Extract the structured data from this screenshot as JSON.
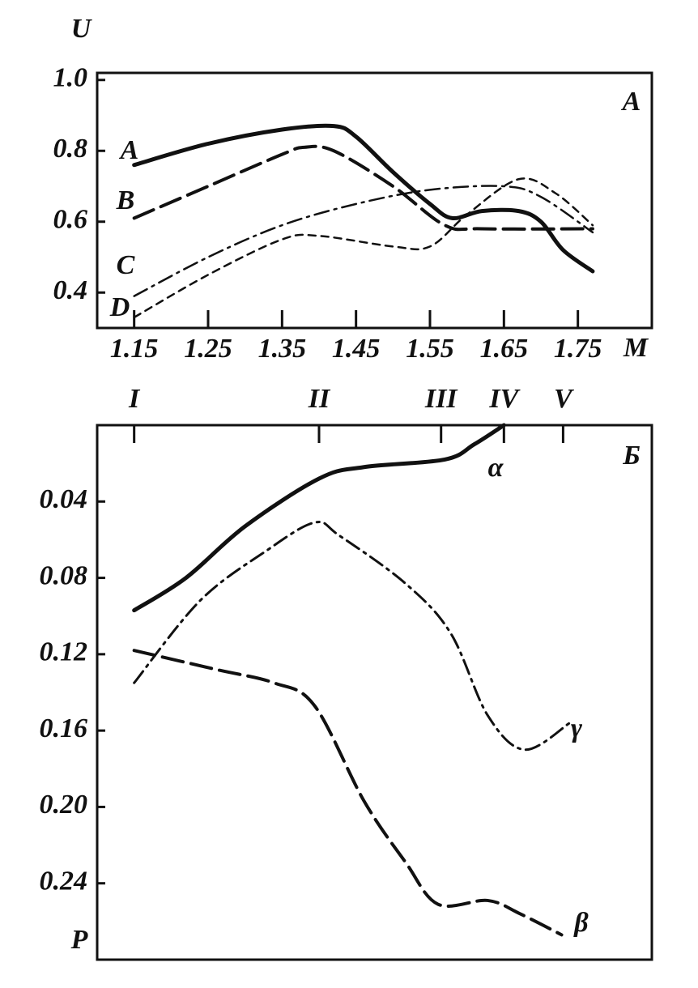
{
  "chart_data": [
    {
      "type": "line",
      "title": "A",
      "y_label": "U",
      "x_label": "M",
      "xlim": [
        1.1,
        1.85
      ],
      "xticks": [
        1.15,
        1.25,
        1.35,
        1.45,
        1.55,
        1.65,
        1.75
      ],
      "ylim": [
        0.3,
        1.02
      ],
      "yticks": [
        0.4,
        0.6,
        0.8,
        {
          "value": 1,
          "label": "1.0"
        }
      ],
      "x_tick_side": "bottom",
      "series": [
        {
          "name": "A",
          "color": "#111111",
          "dash": "solid",
          "width": 5,
          "x": [
            1.15,
            1.25,
            1.35,
            1.42,
            1.45,
            1.5,
            1.55,
            1.58,
            1.62,
            1.67,
            1.7,
            1.73,
            1.77
          ],
          "values": [
            0.76,
            0.82,
            0.86,
            0.87,
            0.84,
            0.74,
            0.65,
            0.61,
            0.63,
            0.63,
            0.6,
            0.52,
            0.46
          ]
        },
        {
          "name": "B",
          "color": "#111111",
          "dash": "long",
          "width": 4,
          "x": [
            1.15,
            1.25,
            1.35,
            1.38,
            1.42,
            1.5,
            1.57,
            1.62,
            1.77
          ],
          "values": [
            0.61,
            0.7,
            0.79,
            0.81,
            0.8,
            0.7,
            0.59,
            0.58,
            0.58
          ]
        },
        {
          "name": "C",
          "color": "#111111",
          "dash": "dashdot",
          "width": 2.5,
          "x": [
            1.15,
            1.25,
            1.35,
            1.45,
            1.55,
            1.65,
            1.7,
            1.77
          ],
          "values": [
            0.39,
            0.5,
            0.59,
            0.65,
            0.69,
            0.7,
            0.67,
            0.57
          ]
        },
        {
          "name": "D",
          "color": "#111111",
          "dash": "short",
          "width": 2.5,
          "x": [
            1.15,
            1.25,
            1.35,
            1.4,
            1.5,
            1.55,
            1.6,
            1.67,
            1.72,
            1.77
          ],
          "values": [
            0.33,
            0.45,
            0.55,
            0.56,
            0.53,
            0.53,
            0.62,
            0.72,
            0.68,
            0.59
          ]
        }
      ]
    },
    {
      "type": "line",
      "title": "Б",
      "y_label": "P",
      "xlim": [
        1.1,
        1.85
      ],
      "xticks": [
        {
          "value": 1.15,
          "label": "I"
        },
        {
          "value": 1.4,
          "label": "II"
        },
        {
          "value": 1.565,
          "label": "III"
        },
        {
          "value": 1.65,
          "label": "IV"
        },
        {
          "value": 1.73,
          "label": "V"
        }
      ],
      "ylim": [
        0,
        0.28
      ],
      "y_inverted": true,
      "yticks": [
        0.04,
        0.08,
        0.12,
        0.16,
        {
          "value": 0.2,
          "label": "0.20"
        },
        0.24
      ],
      "x_tick_side": "top",
      "series": [
        {
          "name": "α",
          "color": "#111111",
          "dash": "solid",
          "width": 5,
          "x": [
            1.15,
            1.22,
            1.3,
            1.4,
            1.46,
            1.57,
            1.61,
            1.65
          ],
          "values": [
            0.097,
            0.08,
            0.053,
            0.028,
            0.022,
            0.018,
            0.01,
            0.0
          ]
        },
        {
          "name": "γ",
          "color": "#111111",
          "dash": "dashdot",
          "width": 3,
          "x": [
            1.15,
            1.239,
            1.328,
            1.394,
            1.428,
            1.517,
            1.578,
            1.628,
            1.678,
            1.739
          ],
          "values": [
            0.135,
            0.092,
            0.066,
            0.051,
            0.058,
            0.083,
            0.109,
            0.152,
            0.17,
            0.156
          ]
        },
        {
          "name": "β",
          "color": "#111111",
          "dash": "long",
          "width": 4,
          "x": [
            1.15,
            1.261,
            1.339,
            1.394,
            1.461,
            1.517,
            1.561,
            1.628,
            1.672,
            1.728
          ],
          "values": [
            0.118,
            0.128,
            0.135,
            0.147,
            0.197,
            0.229,
            0.251,
            0.249,
            0.256,
            0.267
          ]
        }
      ]
    }
  ]
}
